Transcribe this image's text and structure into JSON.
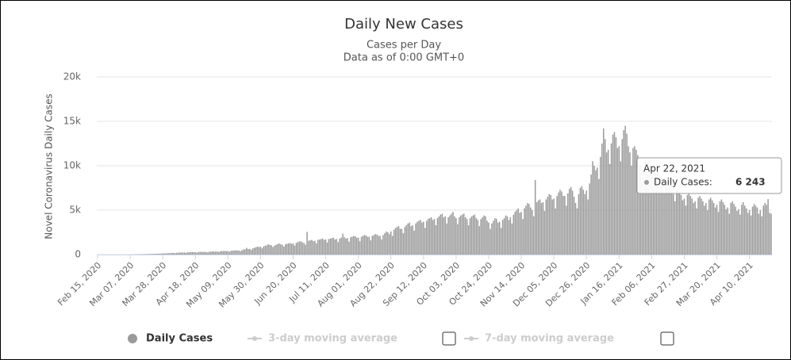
{
  "chart_data": {
    "type": "bar",
    "title": "Daily New Cases",
    "subtitle": [
      "Cases per Day",
      "Data as of 0:00 GMT+0"
    ],
    "y_axis_label": "Novel Coronavirus Daily Cases",
    "ylim": [
      0,
      20000
    ],
    "yticks": [
      0,
      {
        "value": 5000,
        "label": "5k"
      },
      {
        "value": 10000,
        "label": "10k"
      },
      {
        "value": 15000,
        "label": "15k"
      },
      {
        "value": 20000,
        "label": "20k"
      }
    ],
    "grid": true,
    "categories": [
      "Feb 15, 2020",
      null,
      null,
      null,
      null,
      null,
      null,
      null,
      null,
      null,
      null,
      null,
      null,
      null,
      null,
      null,
      null,
      null,
      null,
      null,
      null,
      "Mar 07, 2020",
      null,
      null,
      null,
      null,
      null,
      null,
      null,
      null,
      null,
      null,
      null,
      null,
      null,
      null,
      null,
      null,
      null,
      null,
      null,
      null,
      "Mar 28, 2020",
      null,
      null,
      null,
      null,
      null,
      null,
      null,
      null,
      null,
      null,
      null,
      null,
      null,
      null,
      null,
      null,
      null,
      null,
      null,
      null,
      "Apr 18, 2020",
      null,
      null,
      null,
      null,
      null,
      null,
      null,
      null,
      null,
      null,
      null,
      null,
      null,
      null,
      null,
      null,
      null,
      null,
      null,
      null,
      "May 09, 2020",
      null,
      null,
      null,
      null,
      null,
      null,
      null,
      null,
      null,
      null,
      null,
      null,
      null,
      null,
      null,
      null,
      null,
      null,
      null,
      null,
      "May 30, 2020",
      null,
      null,
      null,
      null,
      null,
      null,
      null,
      null,
      null,
      null,
      null,
      null,
      null,
      null,
      null,
      null,
      null,
      null,
      null,
      null,
      "Jun 20, 2020",
      null,
      null,
      null,
      null,
      null,
      null,
      null,
      null,
      null,
      null,
      null,
      null,
      null,
      null,
      null,
      null,
      null,
      null,
      null,
      null,
      "Jul 11, 2020",
      null,
      null,
      null,
      null,
      null,
      null,
      null,
      null,
      null,
      null,
      null,
      null,
      null,
      null,
      null,
      null,
      null,
      null,
      null,
      null,
      "Aug 01, 2020",
      null,
      null,
      null,
      null,
      null,
      null,
      null,
      null,
      null,
      null,
      null,
      null,
      null,
      null,
      null,
      null,
      null,
      null,
      null,
      null,
      "Aug 22, 2020",
      null,
      null,
      null,
      null,
      null,
      null,
      null,
      null,
      null,
      null,
      null,
      null,
      null,
      null,
      null,
      null,
      null,
      null,
      null,
      null,
      "Sep 12, 2020",
      null,
      null,
      null,
      null,
      null,
      null,
      null,
      null,
      null,
      null,
      null,
      null,
      null,
      null,
      null,
      null,
      null,
      null,
      null,
      null,
      "Oct 03, 2020",
      null,
      null,
      null,
      null,
      null,
      null,
      null,
      null,
      null,
      null,
      null,
      null,
      null,
      null,
      null,
      null,
      null,
      null,
      null,
      null,
      "Oct 24, 2020",
      null,
      null,
      null,
      null,
      null,
      null,
      null,
      null,
      null,
      null,
      null,
      null,
      null,
      null,
      null,
      null,
      null,
      null,
      null,
      null,
      "Nov 14, 2020",
      null,
      null,
      null,
      null,
      null,
      null,
      null,
      null,
      null,
      null,
      null,
      null,
      null,
      null,
      null,
      null,
      null,
      null,
      null,
      null,
      "Dec 05, 2020",
      null,
      null,
      null,
      null,
      null,
      null,
      null,
      null,
      null,
      null,
      null,
      null,
      null,
      null,
      null,
      null,
      null,
      null,
      null,
      null,
      "Dec 26, 2020",
      null,
      null,
      null,
      null,
      null,
      null,
      null,
      null,
      null,
      null,
      null,
      null,
      null,
      null,
      null,
      null,
      null,
      null,
      null,
      null,
      "Jan 16, 2021",
      null,
      null,
      null,
      null,
      null,
      null,
      null,
      null,
      null,
      null,
      null,
      null,
      null,
      null,
      null,
      null,
      null,
      null,
      null,
      null,
      "Feb 06, 2021",
      null,
      null,
      null,
      null,
      null,
      null,
      null,
      null,
      null,
      null,
      null,
      null,
      null,
      null,
      null,
      null,
      null,
      null,
      null,
      null,
      "Feb 27, 2021",
      null,
      null,
      null,
      null,
      null,
      null,
      null,
      null,
      null,
      null,
      null,
      null,
      null,
      null,
      null,
      null,
      null,
      null,
      null,
      null,
      "Mar 20, 2021",
      null,
      null,
      null,
      null,
      null,
      null,
      null,
      null,
      null,
      null,
      null,
      null,
      null,
      null,
      null,
      null,
      null,
      null,
      null,
      null,
      "Apr 10, 2021",
      null,
      null,
      null,
      null,
      null,
      null,
      null,
      null,
      null,
      null,
      null,
      null,
      null,
      null
    ],
    "series": [
      {
        "name": "Daily Cases",
        "color": "#9a9a9a",
        "values": [
          0,
          0,
          0,
          0,
          0,
          0,
          0,
          0,
          0,
          0,
          0,
          1,
          1,
          2,
          2,
          3,
          4,
          5,
          6,
          8,
          10,
          12,
          15,
          18,
          20,
          25,
          28,
          30,
          35,
          40,
          45,
          50,
          55,
          60,
          65,
          70,
          75,
          80,
          90,
          95,
          100,
          110,
          120,
          130,
          140,
          150,
          160,
          170,
          180,
          190,
          150,
          200,
          210,
          230,
          240,
          220,
          230,
          180,
          250,
          260,
          270,
          280,
          260,
          270,
          210,
          290,
          300,
          310,
          300,
          290,
          300,
          240,
          320,
          330,
          340,
          350,
          330,
          340,
          280,
          360,
          380,
          390,
          400,
          380,
          390,
          320,
          420,
          440,
          460,
          470,
          450,
          470,
          380,
          500,
          560,
          600,
          750,
          620,
          650,
          520,
          700,
          760,
          820,
          900,
          850,
          880,
          700,
          920,
          980,
          1050,
          1150,
          1080,
          1050,
          850,
          1000,
          1100,
          1180,
          1250,
          1150,
          1100,
          900,
          1150,
          1200,
          1250,
          1300,
          1200,
          1250,
          1000,
          1300,
          1400,
          1450,
          1500,
          1380,
          1300,
          1100,
          2550,
          1550,
          1600,
          1650,
          1500,
          1550,
          1250,
          1650,
          1700,
          1750,
          1800,
          1650,
          1700,
          1350,
          1750,
          1800,
          1850,
          1900,
          1700,
          1750,
          1400,
          1800,
          1900,
          2350,
          1950,
          1800,
          1850,
          1450,
          1950,
          2000,
          2100,
          2050,
          1900,
          1900,
          1500,
          2000,
          2100,
          2200,
          2150,
          2000,
          2000,
          1600,
          2100,
          2200,
          2300,
          2250,
          2100,
          2100,
          1700,
          2200,
          2400,
          2600,
          2500,
          2300,
          2600,
          2100,
          2800,
          3000,
          3100,
          3200,
          2900,
          2900,
          2400,
          3100,
          3300,
          3500,
          3600,
          3200,
          3300,
          2700,
          3500,
          3700,
          3800,
          3900,
          3600,
          3700,
          3000,
          3800,
          4000,
          4100,
          4200,
          3900,
          4000,
          3300,
          4100,
          4300,
          4500,
          4600,
          4200,
          4300,
          3500,
          4200,
          4400,
          4600,
          4800,
          4300,
          4100,
          3400,
          4200,
          4400,
          4500,
          4600,
          4200,
          4000,
          3300,
          4100,
          4300,
          4400,
          4500,
          4100,
          3900,
          3200,
          4000,
          4200,
          4400,
          4300,
          3800,
          3600,
          2900,
          3500,
          3800,
          4100,
          4000,
          3600,
          3700,
          3000,
          3900,
          4100,
          4400,
          4300,
          3900,
          4200,
          3500,
          4500,
          4800,
          5000,
          5200,
          4700,
          4800,
          4000,
          5200,
          5500,
          5800,
          5700,
          5300,
          5000,
          4300,
          8400,
          5900,
          6100,
          6200,
          5800,
          5900,
          4900,
          6200,
          6500,
          6800,
          6700,
          6200,
          6300,
          5200,
          6600,
          7000,
          7300,
          7100,
          6600,
          6600,
          5500,
          6900,
          7400,
          7600,
          7200,
          6500,
          5800,
          5200,
          6800,
          7500,
          7700,
          7300,
          6800,
          7200,
          6200,
          8000,
          9000,
          10500,
          10000,
          9500,
          9800,
          8500,
          11000,
          12500,
          14200,
          13000,
          11500,
          11800,
          10200,
          12500,
          13500,
          13800,
          13200,
          12000,
          12200,
          10500,
          13000,
          14000,
          14500,
          13600,
          12200,
          11500,
          10000,
          12000,
          12200,
          11800,
          11200,
          10000,
          10200,
          8800,
          10500,
          10800,
          10400,
          9800,
          9000,
          9000,
          7800,
          9300,
          9500,
          9200,
          8700,
          8000,
          7900,
          6900,
          8200,
          8400,
          8100,
          7700,
          7000,
          6800,
          6000,
          7200,
          7400,
          7000,
          6700,
          6100,
          6300,
          5500,
          6700,
          6900,
          6600,
          6300,
          5800,
          6000,
          5200,
          6400,
          6600,
          6300,
          6000,
          5500,
          5800,
          5000,
          6200,
          6400,
          6100,
          5800,
          5300,
          5600,
          4800,
          6000,
          6200,
          5900,
          5600,
          5100,
          5300,
          4600,
          5800,
          6000,
          5700,
          5400,
          4900,
          5100,
          4500,
          5600,
          5900,
          5500,
          5200,
          4700,
          5000,
          4400,
          5400,
          5700,
          5500,
          5300,
          4600,
          5000,
          4300,
          5500,
          5800,
          5600,
          6243,
          4700,
          4600
        ]
      }
    ],
    "hidden_series": [
      {
        "name": "3-day moving average",
        "color": "#cccccc"
      },
      {
        "name": "7-day moving average",
        "color": "#cccccc"
      }
    ],
    "tooltip": {
      "title": "Apr 22, 2021",
      "label": "Daily Cases:",
      "value_label": "6 243"
    }
  }
}
